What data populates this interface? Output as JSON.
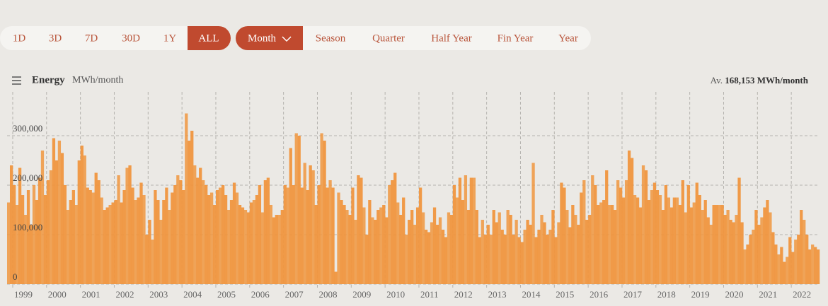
{
  "range_buttons": [
    "1D",
    "3D",
    "7D",
    "30D",
    "1Y",
    "ALL"
  ],
  "interval_buttons": [
    "Month",
    "Season",
    "Quarter",
    "Half Year",
    "Fin Year",
    "Year"
  ],
  "chart_data": {
    "type": "bar",
    "title": "Energy",
    "unit": "MWh/month",
    "average_prefix": "Av.",
    "average_value": "168,153 MWh/month",
    "color": "#f0963f",
    "grid": true,
    "ylim": [
      0,
      380000
    ],
    "yticks": [
      0,
      {
        "value": 100000,
        "label": "100,000"
      },
      {
        "value": 200000,
        "label": "200,000"
      },
      {
        "value": 300000,
        "label": "300,000"
      }
    ],
    "categories": [
      null,
      null,
      "1999",
      null,
      null,
      null,
      null,
      null,
      null,
      null,
      null,
      null,
      null,
      null,
      "2000",
      null,
      null,
      null,
      null,
      null,
      null,
      null,
      null,
      null,
      null,
      null,
      "2001",
      null,
      null,
      null,
      null,
      null,
      null,
      null,
      null,
      null,
      null,
      null,
      "2002",
      null,
      null,
      null,
      null,
      null,
      null,
      null,
      null,
      null,
      null,
      null,
      "2003",
      null,
      null,
      null,
      null,
      null,
      null,
      null,
      null,
      null,
      null,
      null,
      "2004",
      null,
      null,
      null,
      null,
      null,
      null,
      null,
      null,
      null,
      null,
      null,
      "2005",
      null,
      null,
      null,
      null,
      null,
      null,
      null,
      null,
      null,
      null,
      null,
      "2006",
      null,
      null,
      null,
      null,
      null,
      null,
      null,
      null,
      null,
      null,
      null,
      "2007",
      null,
      null,
      null,
      null,
      null,
      null,
      null,
      null,
      null,
      null,
      null,
      "2008",
      null,
      null,
      null,
      null,
      null,
      null,
      null,
      null,
      null,
      null,
      null,
      "2009",
      null,
      null,
      null,
      null,
      null,
      null,
      null,
      null,
      null,
      null,
      null,
      "2010",
      null,
      null,
      null,
      null,
      null,
      null,
      null,
      null,
      null,
      null,
      null,
      "2011",
      null,
      null,
      null,
      null,
      null,
      null,
      null,
      null,
      null,
      null,
      null,
      "2012",
      null,
      null,
      null,
      null,
      null,
      null,
      null,
      null,
      null,
      null,
      null,
      "2013",
      null,
      null,
      null,
      null,
      null,
      null,
      null,
      null,
      null,
      null,
      null,
      "2014",
      null,
      null,
      null,
      null,
      null,
      null,
      null,
      null,
      null,
      null,
      null,
      "2015",
      null,
      null,
      null,
      null,
      null,
      null,
      null,
      null,
      null,
      null,
      null,
      "2016",
      null,
      null,
      null,
      null,
      null,
      null,
      null,
      null,
      null,
      null,
      null,
      "2017",
      null,
      null,
      null,
      null,
      null,
      null,
      null,
      null,
      null,
      null,
      null,
      "2018",
      null,
      null,
      null,
      null,
      null,
      null,
      null,
      null,
      null,
      null,
      null,
      "2019",
      null,
      null,
      null,
      null,
      null,
      null,
      null,
      null,
      null,
      null,
      null,
      "2020",
      null,
      null,
      null,
      null,
      null,
      null,
      null,
      null,
      null,
      null,
      null,
      "2021",
      null,
      null,
      null,
      null,
      null,
      null,
      null,
      null,
      null,
      null,
      null,
      "2022",
      null,
      null,
      null,
      null,
      null,
      null,
      null,
      null,
      null
    ],
    "values": [
      165000,
      240000,
      200000,
      160000,
      235000,
      180000,
      140000,
      190000,
      120000,
      200000,
      170000,
      215000,
      270000,
      180000,
      210000,
      230000,
      295000,
      250000,
      290000,
      265000,
      200000,
      150000,
      170000,
      190000,
      160000,
      250000,
      280000,
      260000,
      195000,
      190000,
      185000,
      225000,
      210000,
      175000,
      150000,
      155000,
      160000,
      165000,
      170000,
      220000,
      165000,
      190000,
      235000,
      240000,
      195000,
      170000,
      175000,
      205000,
      180000,
      100000,
      130000,
      90000,
      190000,
      170000,
      130000,
      170000,
      195000,
      150000,
      185000,
      200000,
      220000,
      210000,
      190000,
      345000,
      290000,
      310000,
      240000,
      215000,
      235000,
      210000,
      200000,
      180000,
      185000,
      160000,
      190000,
      195000,
      200000,
      180000,
      150000,
      170000,
      205000,
      185000,
      160000,
      155000,
      150000,
      145000,
      165000,
      170000,
      180000,
      200000,
      145000,
      210000,
      215000,
      160000,
      135000,
      140000,
      140000,
      150000,
      200000,
      195000,
      275000,
      200000,
      305000,
      300000,
      195000,
      245000,
      190000,
      240000,
      230000,
      160000,
      200000,
      305000,
      290000,
      195000,
      210000,
      195000,
      25000,
      185000,
      170000,
      160000,
      150000,
      140000,
      195000,
      130000,
      220000,
      215000,
      155000,
      100000,
      170000,
      135000,
      130000,
      150000,
      155000,
      160000,
      135000,
      200000,
      210000,
      225000,
      165000,
      140000,
      175000,
      100000,
      130000,
      150000,
      120000,
      155000,
      195000,
      145000,
      110000,
      105000,
      125000,
      155000,
      120000,
      135000,
      110000,
      95000,
      145000,
      140000,
      200000,
      175000,
      215000,
      170000,
      220000,
      150000,
      215000,
      215000,
      150000,
      95000,
      130000,
      100000,
      120000,
      100000,
      150000,
      125000,
      145000,
      110000,
      100000,
      150000,
      140000,
      100000,
      130000,
      95000,
      85000,
      110000,
      130000,
      120000,
      245000,
      95000,
      110000,
      140000,
      125000,
      100000,
      110000,
      150000,
      95000,
      125000,
      205000,
      195000,
      150000,
      115000,
      160000,
      140000,
      120000,
      185000,
      210000,
      130000,
      140000,
      220000,
      200000,
      160000,
      165000,
      170000,
      230000,
      160000,
      160000,
      150000,
      210000,
      195000,
      175000,
      210000,
      270000,
      255000,
      180000,
      175000,
      155000,
      240000,
      230000,
      170000,
      190000,
      205000,
      190000,
      180000,
      150000,
      200000,
      175000,
      155000,
      175000,
      175000,
      160000,
      210000,
      145000,
      200000,
      155000,
      165000,
      205000,
      180000,
      150000,
      170000,
      135000,
      120000,
      160000,
      160000,
      160000,
      160000,
      140000,
      150000,
      130000,
      125000,
      140000,
      215000,
      125000,
      70000,
      80000,
      100000,
      110000,
      150000,
      120000,
      135000,
      155000,
      170000,
      145000,
      105000,
      80000,
      60000,
      75000,
      45000,
      55000,
      95000,
      65000,
      90000,
      100000,
      150000,
      130000,
      100000,
      70000,
      80000,
      75000,
      70000
    ]
  }
}
